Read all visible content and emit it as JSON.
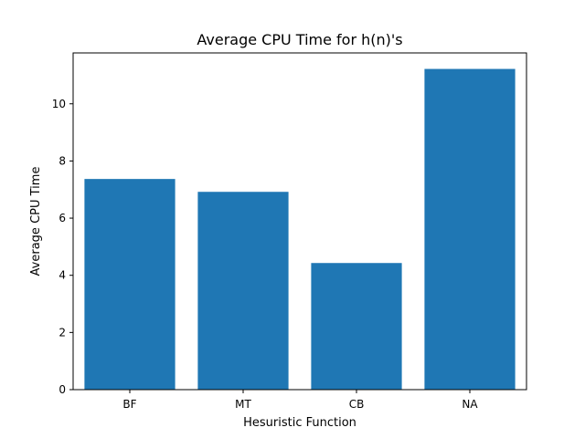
{
  "chart_data": {
    "type": "bar",
    "title": "Average CPU Time for h(n)'s",
    "xlabel": "Hesuristic Function",
    "ylabel": "Average CPU Time",
    "categories": [
      "BF",
      "MT",
      "CB",
      "NA"
    ],
    "values": [
      7.37,
      6.92,
      4.43,
      11.22
    ],
    "ylim": [
      0,
      11.78
    ],
    "yticks": [
      0,
      2,
      4,
      6,
      8,
      10
    ],
    "ytick_labels": [
      "0",
      "2",
      "4",
      "6",
      "8",
      "10"
    ],
    "bar_color": "#1f77b4",
    "grid": false,
    "legend": "none"
  }
}
